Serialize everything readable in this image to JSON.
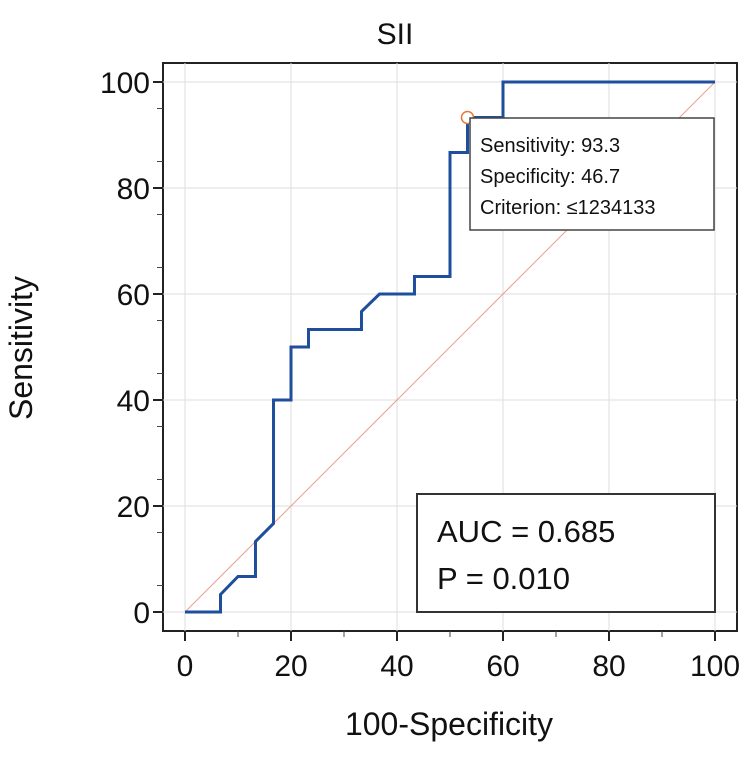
{
  "chart_data": {
    "type": "line",
    "title": "SII",
    "xlabel": "100-Specificity",
    "ylabel": "Sensitivity",
    "xlim": [
      0,
      100
    ],
    "ylim": [
      0,
      100
    ],
    "x_ticks": [
      "0",
      "20",
      "40",
      "60",
      "80",
      "100"
    ],
    "y_ticks": [
      "0",
      "20",
      "40",
      "60",
      "80",
      "100"
    ],
    "series": [
      {
        "name": "ROC curve",
        "color": "#1f4e9c",
        "points": [
          [
            0,
            0
          ],
          [
            6.7,
            0
          ],
          [
            6.7,
            3.3
          ],
          [
            10,
            6.7
          ],
          [
            13.3,
            6.7
          ],
          [
            13.3,
            13.3
          ],
          [
            16.7,
            16.7
          ],
          [
            16.7,
            40
          ],
          [
            20,
            40
          ],
          [
            20,
            50
          ],
          [
            23.3,
            50
          ],
          [
            23.3,
            53.3
          ],
          [
            33.3,
            53.3
          ],
          [
            33.3,
            56.7
          ],
          [
            36.7,
            60
          ],
          [
            43.3,
            60
          ],
          [
            43.3,
            63.3
          ],
          [
            50,
            63.3
          ],
          [
            50,
            86.7
          ],
          [
            53.3,
            86.7
          ],
          [
            53.3,
            93.3
          ],
          [
            60,
            93.3
          ],
          [
            60,
            100
          ],
          [
            100,
            100
          ]
        ]
      },
      {
        "name": "Reference line",
        "color": "#e8a090",
        "points": [
          [
            0,
            0
          ],
          [
            100,
            100
          ]
        ]
      }
    ],
    "optimal_point": {
      "x": 53.3,
      "y": 93.3,
      "color": "#e07a3a",
      "sensitivity_label": "Sensitivity: 93.3",
      "specificity_label": "Specificity: 46.7",
      "criterion_label": "Criterion: ≤1234133"
    },
    "annotations": {
      "auc": "AUC = 0.685",
      "p_value": "P = 0.010"
    }
  }
}
